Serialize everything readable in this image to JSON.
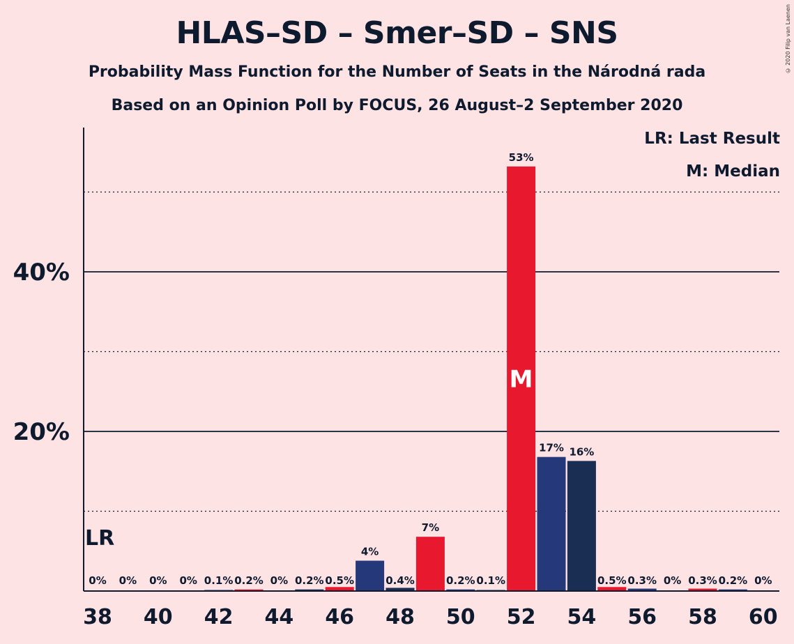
{
  "title": "HLAS–SD – Smer–SD – SNS",
  "subtitle_1": "Probability Mass Function for the Number of Seats in the Národná rada",
  "subtitle_2": "Based on an Opinion Poll by FOCUS, 26 August–2 September 2020",
  "copyright": "© 2020 Filip van Laenen",
  "legend": {
    "last_result": "LR: Last Result",
    "median": "M: Median"
  },
  "colors": {
    "red": "#e8192f",
    "navy": "#25397a",
    "dark_navy": "#1a2d52",
    "background": "#fde3e4"
  },
  "chart_data": {
    "type": "bar",
    "x": [
      38,
      39,
      40,
      41,
      42,
      43,
      44,
      45,
      46,
      47,
      48,
      49,
      50,
      51,
      52,
      53,
      54,
      55,
      56,
      57,
      58,
      59,
      60
    ],
    "values": [
      0,
      0,
      0,
      0,
      0.1,
      0.2,
      0,
      0.2,
      0.5,
      3.8,
      0.4,
      6.8,
      0.2,
      0.1,
      53.2,
      16.8,
      16.3,
      0.5,
      0.3,
      0,
      0.3,
      0.2,
      0
    ],
    "labels": [
      "0%",
      "0%",
      "0%",
      "0%",
      "0.1%",
      "0.2%",
      "0%",
      "0.2%",
      "0.5%",
      "4%",
      "0.4%",
      "7%",
      "0.2%",
      "0.1%",
      "53%",
      "17%",
      "16%",
      "0.5%",
      "0.3%",
      "0%",
      "0.3%",
      "0.2%",
      "0%"
    ],
    "bar_colors": [
      "red",
      "navy",
      "dark_navy",
      "red",
      "navy",
      "red",
      "navy",
      "dark_navy",
      "red",
      "navy",
      "dark_navy",
      "red",
      "navy",
      "dark_navy",
      "red",
      "navy",
      "dark_navy",
      "red",
      "navy",
      "dark_navy",
      "red",
      "navy",
      "dark_navy"
    ],
    "x_tick_labels": [
      "38",
      "40",
      "42",
      "44",
      "46",
      "48",
      "50",
      "52",
      "54",
      "56",
      "58",
      "60"
    ],
    "y_tick_labels": [
      "20%",
      "40%"
    ],
    "y_ticks": [
      20,
      40
    ],
    "y_dotted_gridlines": [
      10,
      30,
      50
    ],
    "ylim": [
      0,
      58
    ],
    "median_seat": 52,
    "median_marker": "M",
    "last_result_seat": 38,
    "last_result_marker": "LR"
  }
}
